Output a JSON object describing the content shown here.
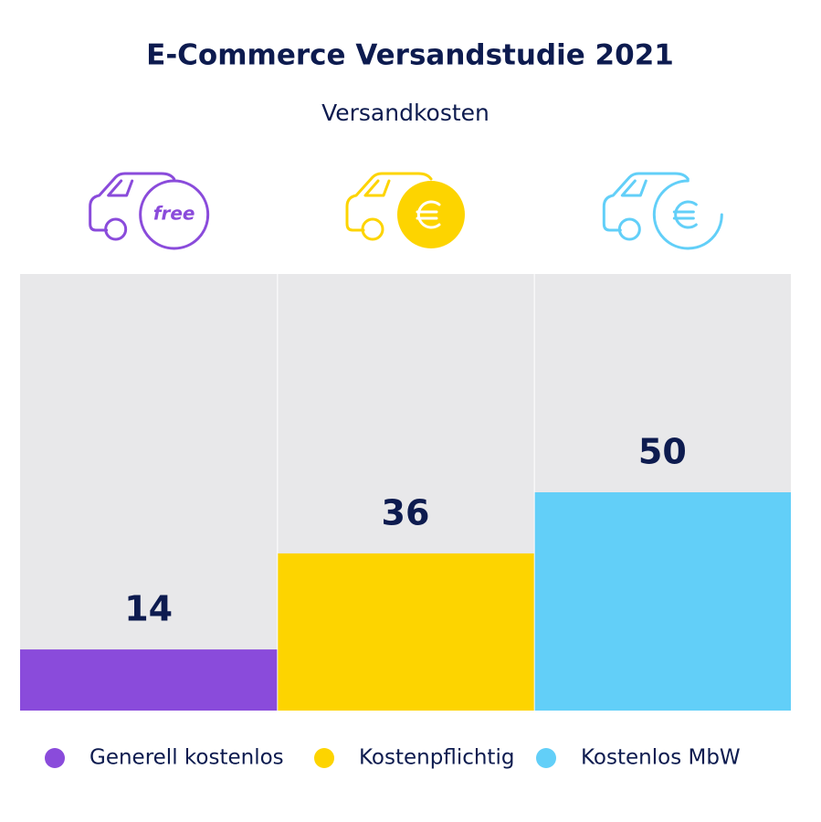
{
  "chart_data": {
    "type": "bar",
    "title": "E-Commerce Versandstudie 2021",
    "subtitle": "Versandkosten",
    "icon_label": "free",
    "categories": [
      "Generell kostenlos",
      "Kostenpflichtig",
      "Kostenlos MbW"
    ],
    "values": [
      14,
      36,
      50
    ],
    "colors": [
      "#8a4bdb",
      "#fdd400",
      "#62cff8"
    ],
    "ylim": [
      0,
      100
    ],
    "legend": "bottom"
  }
}
